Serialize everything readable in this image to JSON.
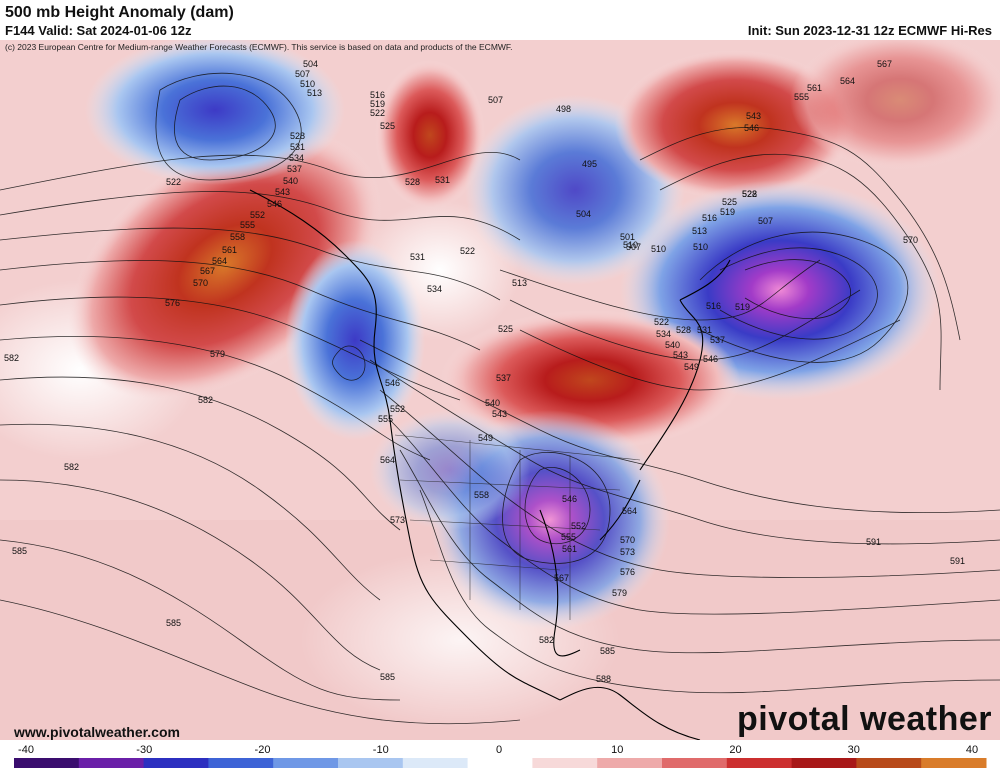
{
  "header": {
    "title": "500 mb Height Anomaly (dam)",
    "valid": "F144 Valid: Sat 2024-01-06 12z",
    "init": "Init: Sun 2023-12-31 12z ECMWF Hi-Res",
    "copyright": "(c) 2023 European Centre for Medium-range Weather Forecasts (ECMWF). This service is based on data and products of the ECMWF."
  },
  "footer": {
    "website": "www.pivotalweather.com",
    "brand": "pivotal weather"
  },
  "colorbar": {
    "ticks": [
      "-40",
      "-30",
      "-20",
      "-10",
      "0",
      "10",
      "20",
      "30",
      "40"
    ],
    "colors_negative": [
      "#3a0d6e",
      "#6a1fa8",
      "#2c2fc0",
      "#3d63d6",
      "#6f98e6",
      "#a9c6f0",
      "#dce9f8",
      "#ffffff"
    ],
    "colors_positive": [
      "#ffffff",
      "#f7d9d9",
      "#eeaaaa",
      "#e06b6b",
      "#cc2f2f",
      "#a81818",
      "#b84a1a",
      "#d97c2a"
    ]
  },
  "contour_labels": [
    "504",
    "507",
    "510",
    "513",
    "516",
    "519",
    "522",
    "525",
    "528",
    "531",
    "534",
    "537",
    "540",
    "543",
    "546",
    "549",
    "552",
    "555",
    "558",
    "561",
    "564",
    "567",
    "570",
    "573",
    "576",
    "579",
    "582",
    "585",
    "588",
    "591",
    "495",
    "498",
    "501"
  ]
}
